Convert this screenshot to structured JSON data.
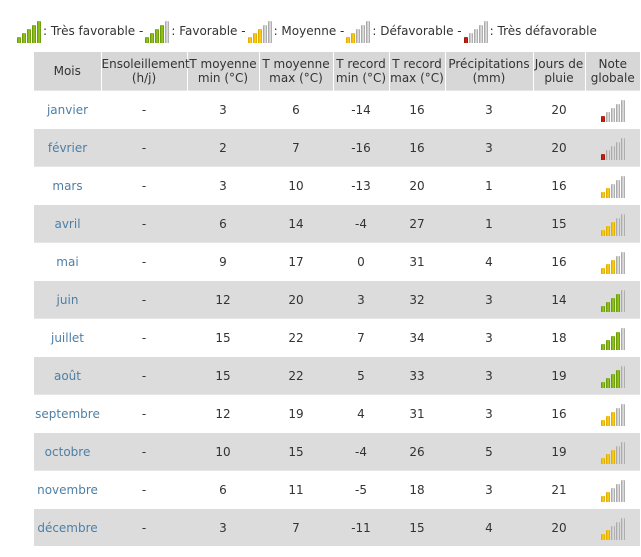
{
  "legend": [
    {
      "label": ": Très favorable -",
      "level": 5,
      "color": "green"
    },
    {
      "label": ": Favorable -",
      "level": 4,
      "color": "green"
    },
    {
      "label": ": Moyenne -",
      "level": 3,
      "color": "yellow"
    },
    {
      "label": ": Défavorable -",
      "level": 2,
      "color": "yellow"
    },
    {
      "label": ": Très défavorable",
      "level": 1,
      "color": "red"
    }
  ],
  "headers": {
    "month": "Mois",
    "sun": [
      "Ensoleillement",
      "(h/j)"
    ],
    "tmin": [
      "T moyenne",
      "min (°C)"
    ],
    "tmax": [
      "T moyenne",
      "max (°C)"
    ],
    "rmin": [
      "T record",
      "min (°C)"
    ],
    "rmax": [
      "T record",
      "max (°C)"
    ],
    "precip": [
      "Précipitations",
      "(mm)"
    ],
    "rain": [
      "Jours de",
      "pluie"
    ],
    "note": [
      "Note",
      "globale"
    ]
  },
  "rows": [
    {
      "month": "janvier",
      "sun": "-",
      "tmin": "3",
      "tmax": "6",
      "rmin": "-14",
      "rmax": "16",
      "precip": "3",
      "rain": "20",
      "note_level": 1,
      "note_color": "red"
    },
    {
      "month": "février",
      "sun": "-",
      "tmin": "2",
      "tmax": "7",
      "rmin": "-16",
      "rmax": "16",
      "precip": "3",
      "rain": "20",
      "note_level": 1,
      "note_color": "red"
    },
    {
      "month": "mars",
      "sun": "-",
      "tmin": "3",
      "tmax": "10",
      "rmin": "-13",
      "rmax": "20",
      "precip": "1",
      "rain": "16",
      "note_level": 2,
      "note_color": "yellow"
    },
    {
      "month": "avril",
      "sun": "-",
      "tmin": "6",
      "tmax": "14",
      "rmin": "-4",
      "rmax": "27",
      "precip": "1",
      "rain": "15",
      "note_level": 3,
      "note_color": "yellow"
    },
    {
      "month": "mai",
      "sun": "-",
      "tmin": "9",
      "tmax": "17",
      "rmin": "0",
      "rmax": "31",
      "precip": "4",
      "rain": "16",
      "note_level": 3,
      "note_color": "yellow"
    },
    {
      "month": "juin",
      "sun": "-",
      "tmin": "12",
      "tmax": "20",
      "rmin": "3",
      "rmax": "32",
      "precip": "3",
      "rain": "14",
      "note_level": 4,
      "note_color": "green"
    },
    {
      "month": "juillet",
      "sun": "-",
      "tmin": "15",
      "tmax": "22",
      "rmin": "7",
      "rmax": "34",
      "precip": "3",
      "rain": "18",
      "note_level": 4,
      "note_color": "green"
    },
    {
      "month": "août",
      "sun": "-",
      "tmin": "15",
      "tmax": "22",
      "rmin": "5",
      "rmax": "33",
      "precip": "3",
      "rain": "19",
      "note_level": 4,
      "note_color": "green"
    },
    {
      "month": "septembre",
      "sun": "-",
      "tmin": "12",
      "tmax": "19",
      "rmin": "4",
      "rmax": "31",
      "precip": "3",
      "rain": "16",
      "note_level": 3,
      "note_color": "yellow"
    },
    {
      "month": "octobre",
      "sun": "-",
      "tmin": "10",
      "tmax": "15",
      "rmin": "-4",
      "rmax": "26",
      "precip": "5",
      "rain": "19",
      "note_level": 3,
      "note_color": "yellow"
    },
    {
      "month": "novembre",
      "sun": "-",
      "tmin": "6",
      "tmax": "11",
      "rmin": "-5",
      "rmax": "18",
      "precip": "3",
      "rain": "21",
      "note_level": 2,
      "note_color": "yellow"
    },
    {
      "month": "décembre",
      "sun": "-",
      "tmin": "3",
      "tmax": "7",
      "rmin": "-11",
      "rmax": "15",
      "precip": "4",
      "rain": "20",
      "note_level": 2,
      "note_color": "yellow"
    }
  ]
}
